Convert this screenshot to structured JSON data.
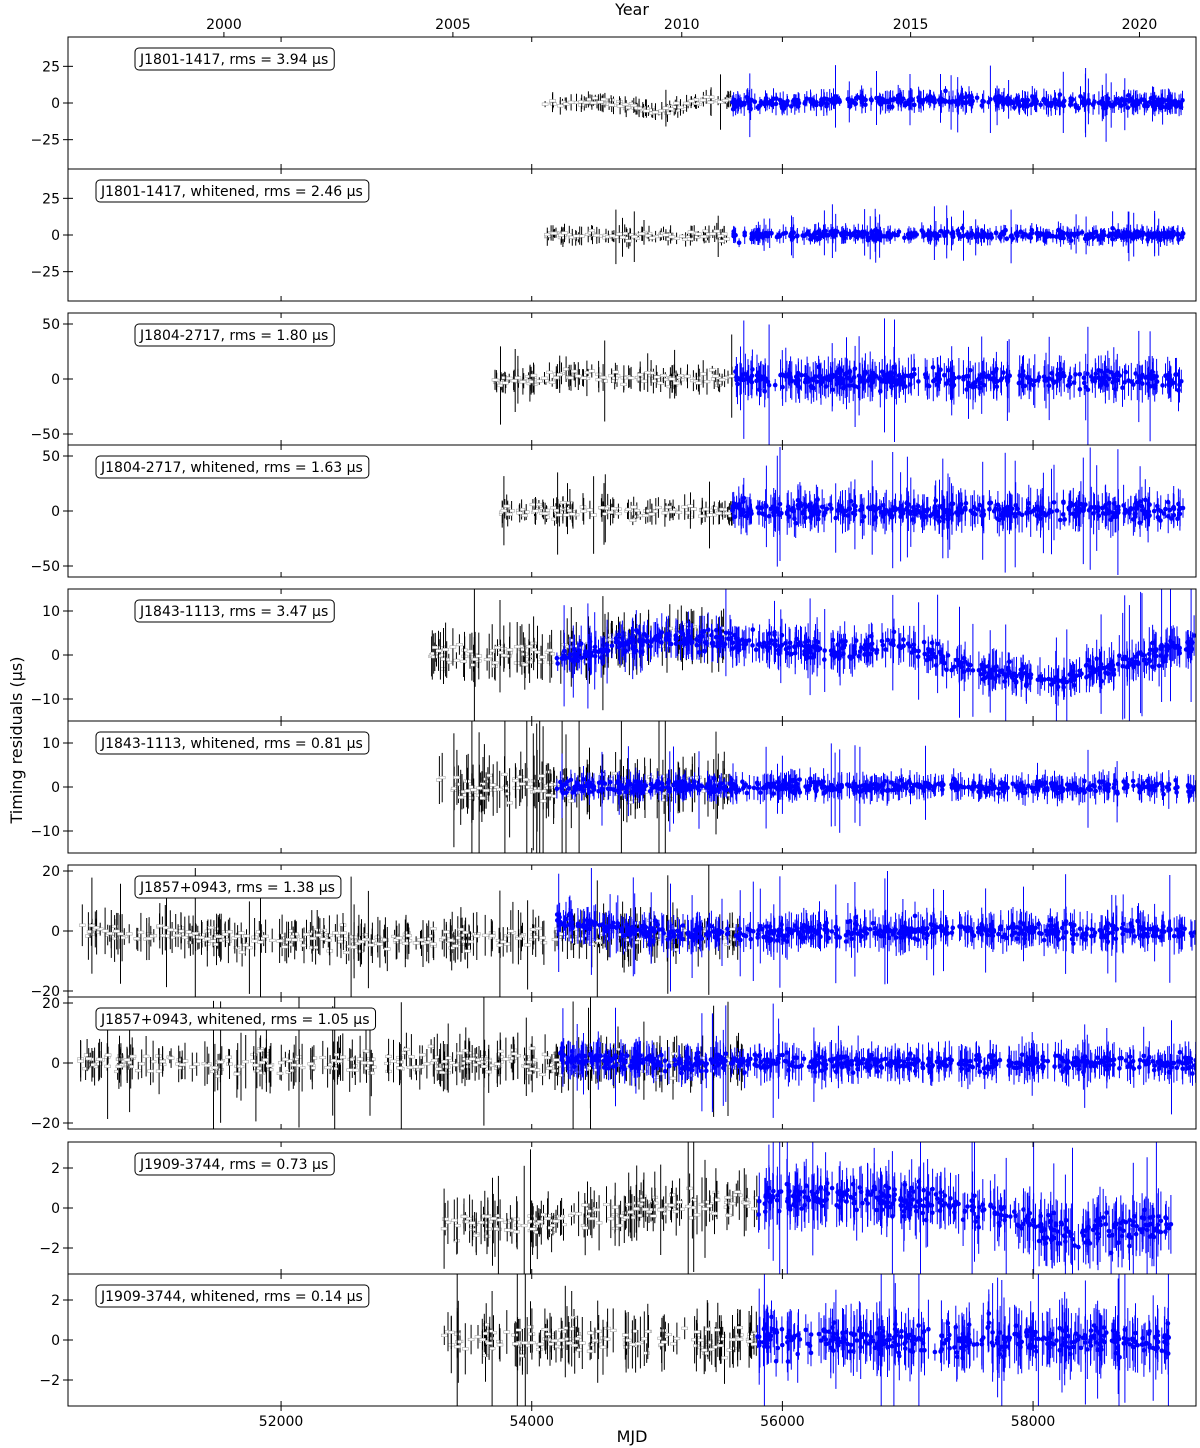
{
  "chart_data": {
    "type": "scatter",
    "title": "",
    "xlabel": "MJD",
    "ylabel": "Timing residuals (μs)",
    "top_xlabel": "Year",
    "xlim": [
      50300,
      59300
    ],
    "x_ticks": [
      52000,
      54000,
      56000,
      58000
    ],
    "year_ticks": [
      {
        "label": "2000",
        "mjd": 51544
      },
      {
        "label": "2005",
        "mjd": 53371
      },
      {
        "label": "2010",
        "mjd": 55197
      },
      {
        "label": "2015",
        "mjd": 57023
      },
      {
        "label": "2020",
        "mjd": 58849
      }
    ],
    "series_colors": {
      "earlier": "#000000",
      "recent": "#0000ff"
    },
    "panels": [
      {
        "label": "J1801-1417, rms = 3.94 μs",
        "ylim": [
          -45,
          45
        ],
        "yticks": [
          -25,
          0,
          25
        ],
        "segments": [
          {
            "series": "earlier",
            "x_range": [
              54100,
              55600
            ],
            "err": 4,
            "points": [
              [
                54150,
                0
              ],
              [
                54600,
                1
              ],
              [
                55000,
                -6
              ],
              [
                55400,
                2
              ]
            ]
          },
          {
            "series": "recent",
            "x_range": [
              55600,
              59200
            ],
            "err": 5,
            "points": [
              [
                55700,
                0
              ],
              [
                57000,
                2
              ],
              [
                58500,
                0
              ],
              [
                59100,
                0
              ]
            ]
          }
        ]
      },
      {
        "label": "J1801-1417, whitened, rms = 2.46 μs",
        "ylim": [
          -45,
          45
        ],
        "yticks": [
          -25,
          0,
          25
        ],
        "segments": [
          {
            "series": "earlier",
            "x_range": [
              54100,
              55600
            ],
            "err": 4,
            "points": [
              [
                54150,
                0
              ],
              [
                55000,
                0
              ],
              [
                55600,
                0
              ]
            ]
          },
          {
            "series": "recent",
            "x_range": [
              55600,
              59200
            ],
            "err": 4,
            "points": [
              [
                55700,
                0
              ],
              [
                59100,
                0
              ]
            ]
          }
        ]
      },
      {
        "label": "J1804-2717, rms = 1.80 μs",
        "ylim": [
          -60,
          60
        ],
        "yticks": [
          -50,
          0,
          50
        ],
        "segments": [
          {
            "series": "earlier",
            "x_range": [
              53700,
              55600
            ],
            "err": 8,
            "points": [
              [
                53700,
                -3
              ],
              [
                54500,
                3
              ],
              [
                55000,
                0
              ],
              [
                55600,
                0
              ]
            ]
          },
          {
            "series": "recent",
            "x_range": [
              55600,
              59200
            ],
            "err": 12,
            "points": [
              [
                55700,
                0
              ],
              [
                59100,
                0
              ]
            ]
          }
        ]
      },
      {
        "label": "J1804-2717, whitened, rms = 1.63 μs",
        "ylim": [
          -60,
          60
        ],
        "yticks": [
          -50,
          0,
          50
        ],
        "segments": [
          {
            "series": "earlier",
            "x_range": [
              53700,
              55600
            ],
            "err": 8,
            "points": [
              [
                53700,
                0
              ],
              [
                55600,
                0
              ]
            ]
          },
          {
            "series": "recent",
            "x_range": [
              55600,
              59200
            ],
            "err": 12,
            "points": [
              [
                55700,
                0
              ],
              [
                59100,
                0
              ]
            ]
          }
        ]
      },
      {
        "label": "J1843-1113, rms = 3.47 μs",
        "ylim": [
          -15,
          15
        ],
        "yticks": [
          -10,
          0,
          10
        ],
        "segments": [
          {
            "series": "earlier",
            "x_range": [
              53200,
              55600
            ],
            "err": 4,
            "points": [
              [
                53200,
                0
              ],
              [
                54000,
                0
              ],
              [
                55000,
                4
              ],
              [
                55600,
                4
              ]
            ]
          },
          {
            "series": "recent",
            "x_range": [
              54200,
              59300
            ],
            "err": 3,
            "points": [
              [
                54200,
                -1
              ],
              [
                55000,
                4
              ],
              [
                55600,
                3
              ],
              [
                56500,
                1
              ],
              [
                57000,
                2
              ],
              [
                57500,
                -3
              ],
              [
                58000,
                -5
              ],
              [
                58200,
                -6
              ],
              [
                58700,
                -2
              ],
              [
                59200,
                2
              ]
            ]
          }
        ]
      },
      {
        "label": "J1843-1113, whitened, rms = 0.81 μs",
        "ylim": [
          -15,
          15
        ],
        "yticks": [
          -10,
          0,
          10
        ],
        "segments": [
          {
            "series": "earlier",
            "x_range": [
              53200,
              55600
            ],
            "err": 4,
            "points": [
              [
                53200,
                0
              ],
              [
                55600,
                0
              ]
            ]
          },
          {
            "series": "recent",
            "x_range": [
              54200,
              59300
            ],
            "err": 2,
            "points": [
              [
                54200,
                0
              ],
              [
                59200,
                0
              ]
            ]
          }
        ]
      },
      {
        "label": "J1857+0943, rms = 1.38 μs",
        "ylim": [
          -22,
          22
        ],
        "yticks": [
          -20,
          0,
          20
        ],
        "segments": [
          {
            "series": "earlier",
            "x_range": [
              50400,
              55700
            ],
            "err": 5,
            "points": [
              [
                50400,
                0
              ],
              [
                51500,
                -2
              ],
              [
                52500,
                -3
              ],
              [
                53500,
                -3
              ],
              [
                54500,
                -2
              ],
              [
                55500,
                -1
              ]
            ]
          },
          {
            "series": "recent",
            "x_range": [
              54200,
              59300
            ],
            "err": 4,
            "points": [
              [
                54200,
                4
              ],
              [
                54800,
                0
              ],
              [
                55500,
                -1
              ],
              [
                56500,
                0
              ],
              [
                59200,
                0
              ]
            ]
          }
        ]
      },
      {
        "label": "J1857+0943, whitened, rms = 1.05 μs",
        "ylim": [
          -22,
          22
        ],
        "yticks": [
          -20,
          0,
          20
        ],
        "segments": [
          {
            "series": "earlier",
            "x_range": [
              50400,
              55700
            ],
            "err": 5,
            "points": [
              [
                50400,
                0
              ],
              [
                53000,
                0
              ],
              [
                55700,
                0
              ]
            ]
          },
          {
            "series": "recent",
            "x_range": [
              54200,
              59300
            ],
            "err": 4,
            "points": [
              [
                54200,
                2
              ],
              [
                55000,
                0
              ],
              [
                59200,
                0
              ]
            ]
          }
        ]
      },
      {
        "label": "J1909-3744, rms = 0.73 μs",
        "ylim": [
          -3.3,
          3.3
        ],
        "yticks": [
          -2,
          0,
          2
        ],
        "segments": [
          {
            "series": "earlier",
            "x_range": [
              53300,
              55800
            ],
            "err": 0.9,
            "points": [
              [
                53300,
                -1
              ],
              [
                54300,
                -0.6
              ],
              [
                55000,
                -0.1
              ],
              [
                55800,
                0.3
              ]
            ]
          },
          {
            "series": "recent",
            "x_range": [
              55800,
              59100
            ],
            "err": 1.0,
            "points": [
              [
                55800,
                0.5
              ],
              [
                56500,
                0.7
              ],
              [
                57200,
                0.3
              ],
              [
                57700,
                -0.2
              ],
              [
                58200,
                -1.2
              ],
              [
                59100,
                -0.9
              ]
            ]
          }
        ]
      },
      {
        "label": "J1909-3744, whitened, rms = 0.14 μs",
        "ylim": [
          -3.3,
          3.3
        ],
        "yticks": [
          -2,
          0,
          2
        ],
        "segments": [
          {
            "series": "earlier",
            "x_range": [
              53300,
              55800
            ],
            "err": 0.9,
            "points": [
              [
                53300,
                0
              ],
              [
                55800,
                0
              ]
            ]
          },
          {
            "series": "recent",
            "x_range": [
              55800,
              59100
            ],
            "err": 1.0,
            "points": [
              [
                55800,
                0
              ],
              [
                59100,
                0
              ]
            ]
          }
        ]
      }
    ]
  }
}
